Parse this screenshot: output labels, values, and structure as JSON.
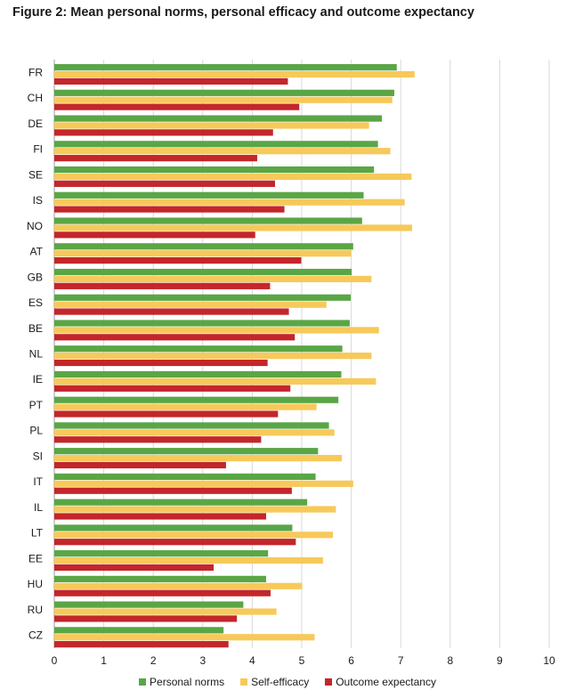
{
  "chart_data": {
    "type": "bar",
    "orientation": "horizontal",
    "title": "Figure 2: Mean personal norms, personal efficacy and outcome expectancy",
    "xlim": [
      0,
      10
    ],
    "xticks": [
      "0",
      "1",
      "2",
      "3",
      "4",
      "5",
      "6",
      "7",
      "8",
      "9",
      "10"
    ],
    "grid": true,
    "legend_position": "bottom",
    "categories": [
      "FR",
      "CH",
      "DE",
      "FI",
      "SE",
      "IS",
      "NO",
      "AT",
      "GB",
      "ES",
      "BE",
      "NL",
      "IE",
      "PT",
      "PL",
      "SI",
      "IT",
      "IL",
      "LT",
      "EE",
      "HU",
      "RU",
      "CZ"
    ],
    "series": [
      {
        "name": "Personal norms",
        "color": "#5aa646",
        "values": [
          6.92,
          6.87,
          6.62,
          6.54,
          6.46,
          6.25,
          6.22,
          6.04,
          6.01,
          5.99,
          5.97,
          5.82,
          5.8,
          5.74,
          5.55,
          5.33,
          5.28,
          5.11,
          4.81,
          4.32,
          4.28,
          3.82,
          3.42
        ]
      },
      {
        "name": "Self-efficacy",
        "color": "#f7c95a",
        "values": [
          7.28,
          6.83,
          6.36,
          6.79,
          7.22,
          7.08,
          7.23,
          6.0,
          6.41,
          5.5,
          6.56,
          6.41,
          6.5,
          5.3,
          5.66,
          5.81,
          6.04,
          5.69,
          5.63,
          5.43,
          5.01,
          4.49,
          5.26
        ]
      },
      {
        "name": "Outcome expectancy",
        "color": "#c3262b",
        "values": [
          4.72,
          4.95,
          4.42,
          4.1,
          4.46,
          4.65,
          4.06,
          4.99,
          4.36,
          4.74,
          4.86,
          4.31,
          4.77,
          4.52,
          4.18,
          3.47,
          4.8,
          4.28,
          4.88,
          3.22,
          4.37,
          3.69,
          3.52
        ]
      }
    ]
  }
}
